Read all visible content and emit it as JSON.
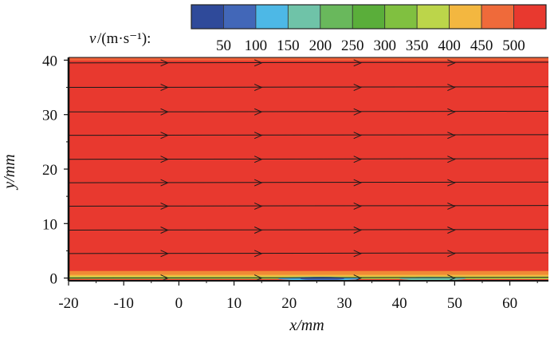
{
  "chart_data": {
    "type": "heatmap",
    "title": "",
    "xlabel": "x/mm",
    "ylabel": "y/mm",
    "xlim": [
      -20,
      67
    ],
    "ylim": [
      -0.5,
      40.5
    ],
    "x_ticks": [
      -20,
      -10,
      0,
      10,
      20,
      30,
      40,
      50,
      60
    ],
    "y_ticks": [
      0,
      10,
      20,
      30,
      40
    ],
    "colorbar": {
      "label_var": "v",
      "label_unit": "/(m·s⁻¹):",
      "colors": [
        "#2f4a9a",
        "#4267b8",
        "#4db8e6",
        "#6fc3a8",
        "#69b85c",
        "#5aae3a",
        "#80c040",
        "#bcd54a",
        "#f3b740",
        "#ef6a3a",
        "#e8392f"
      ],
      "tick_labels": [
        "50",
        "100",
        "150",
        "200",
        "250",
        "300",
        "350",
        "400",
        "450",
        "500"
      ]
    },
    "field": {
      "dominant_value": 500,
      "dominant_color": "#e8392f",
      "description_values": [
        {
          "y_from": 0.5,
          "y_to": 1.3,
          "color": "#f08a35"
        },
        {
          "y_from": 0.2,
          "y_to": 0.6,
          "color": "#f3b740"
        },
        {
          "y_from": -0.2,
          "y_to": 0.3,
          "color": "#bcd54a"
        }
      ]
    },
    "streamlines": {
      "y_values": [
        0,
        4.5,
        8.8,
        13.2,
        17.5,
        21.8,
        26.2,
        30.5,
        35,
        39.5
      ],
      "arrow_x": [
        -2,
        15,
        33,
        50
      ]
    }
  }
}
